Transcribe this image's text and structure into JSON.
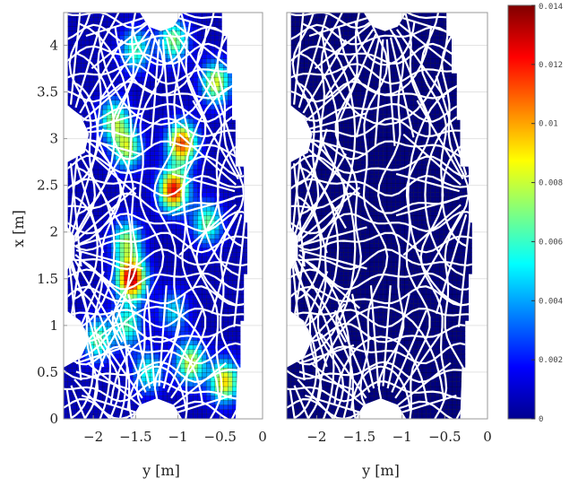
{
  "chart_data": [
    {
      "type": "heatmap",
      "title": "",
      "xlabel": "y [m]",
      "ylabel": "x [m]",
      "xlim": [
        -2.35,
        0
      ],
      "ylim": [
        0,
        4.35
      ],
      "xticks": [
        -2,
        -1.5,
        -1,
        -0.5,
        0
      ],
      "xtick_labels": [
        "−2",
        "−1.5",
        "−1",
        "−0.5",
        "0"
      ],
      "yticks": [
        0,
        0.5,
        1,
        1.5,
        2,
        2.5,
        3,
        3.5,
        4
      ],
      "ytick_labels": [
        "0",
        "0.5",
        "1",
        "1.5",
        "2",
        "2.5",
        "3",
        "3.5",
        "4"
      ],
      "grid": true,
      "colormap": "jet",
      "clim": [
        0,
        0.014
      ],
      "overlay": "white structured mesh",
      "hotspots": [
        {
          "y": -1.55,
          "x": 1.5,
          "value": 0.0125
        },
        {
          "y": -1.05,
          "x": 2.45,
          "value": 0.0115
        },
        {
          "y": -0.95,
          "x": 2.95,
          "value": 0.0105
        },
        {
          "y": -1.6,
          "x": 2.9,
          "value": 0.007
        },
        {
          "y": -1.75,
          "x": 3.2,
          "value": 0.0065
        },
        {
          "y": -1.6,
          "x": 1.9,
          "value": 0.0065
        },
        {
          "y": -0.55,
          "x": 3.6,
          "value": 0.0075
        },
        {
          "y": -0.65,
          "x": 2.1,
          "value": 0.006
        },
        {
          "y": -1.05,
          "x": 4.05,
          "value": 0.0065
        },
        {
          "y": -1.5,
          "x": 3.95,
          "value": 0.0055
        },
        {
          "y": -0.45,
          "x": 0.4,
          "value": 0.0085
        },
        {
          "y": -0.85,
          "x": 0.6,
          "value": 0.0075
        },
        {
          "y": -1.95,
          "x": 0.85,
          "value": 0.006
        },
        {
          "y": -1.6,
          "x": 1.0,
          "value": 0.0055
        },
        {
          "y": -1.35,
          "x": 0.5,
          "value": 0.005
        },
        {
          "y": -1.05,
          "x": 1.15,
          "value": 0.004
        }
      ]
    },
    {
      "type": "heatmap",
      "title": "",
      "xlabel": "y [m]",
      "ylabel": "",
      "xlim": [
        -2.35,
        0
      ],
      "ylim": [
        0,
        4.35
      ],
      "xticks": [
        -2,
        -1.5,
        -1,
        -0.5,
        0
      ],
      "xtick_labels": [
        "−2",
        "−1.5",
        "−1",
        "−0.5",
        "0"
      ],
      "grid": true,
      "colormap": "jet",
      "clim": [
        0,
        0.014
      ],
      "uniform_value": 0,
      "overlay": "white structured mesh"
    }
  ],
  "colorbar": {
    "colormap": "jet",
    "min": 0,
    "max": 0.014,
    "ticks": [
      0,
      0.002,
      0.004,
      0.006,
      0.008,
      0.01,
      0.012,
      0.014
    ],
    "tick_labels": [
      "0",
      "0.002",
      "0.004",
      "0.006",
      "0.008",
      "0.01",
      "0.012",
      "0.014"
    ]
  },
  "colors": {
    "background": "#ffffff",
    "mesh": "#ffffff",
    "low": "#00008f",
    "high": "#800000"
  }
}
